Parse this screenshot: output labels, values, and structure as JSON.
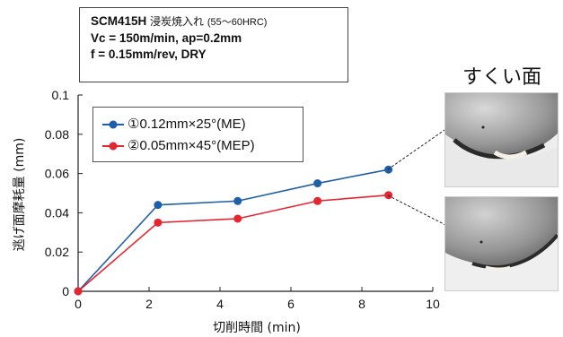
{
  "conditions": {
    "line1_material": "SCM415H",
    "line1_process": "浸炭焼入れ",
    "line1_hardness": "(55〜60HRC)",
    "line2": "Vc = 150m/min, ap=0.2mm",
    "line3": "f = 0.15mm/rev, DRY"
  },
  "photo_panel": {
    "title": "すくい面"
  },
  "colors": {
    "series1": "#1f5fa8",
    "series2": "#e52630",
    "axis": "#222222"
  },
  "chart_data": {
    "type": "line",
    "xlabel": "切削時間 (min)",
    "ylabel": "逃げ面摩耗量 (mm)",
    "xlim": [
      0,
      10
    ],
    "ylim": [
      0,
      0.1
    ],
    "x_ticks": [
      "0",
      "2",
      "4",
      "6",
      "8",
      "10"
    ],
    "y_ticks": [
      "0",
      "0.02",
      "0.04",
      "0.06",
      "0.08",
      "0.1"
    ],
    "grid": false,
    "legend_position": "top-left",
    "series": [
      {
        "name": "①0.12mm×25°(ME)",
        "color": "#1f5fa8",
        "x": [
          0,
          2.25,
          4.5,
          6.75,
          8.75
        ],
        "y": [
          0,
          0.044,
          0.046,
          0.055,
          0.062
        ]
      },
      {
        "name": "②0.05mm×45°(MEP)",
        "color": "#e52630",
        "x": [
          0,
          2.25,
          4.5,
          6.75,
          8.75
        ],
        "y": [
          0,
          0.035,
          0.037,
          0.046,
          0.049
        ]
      }
    ]
  }
}
